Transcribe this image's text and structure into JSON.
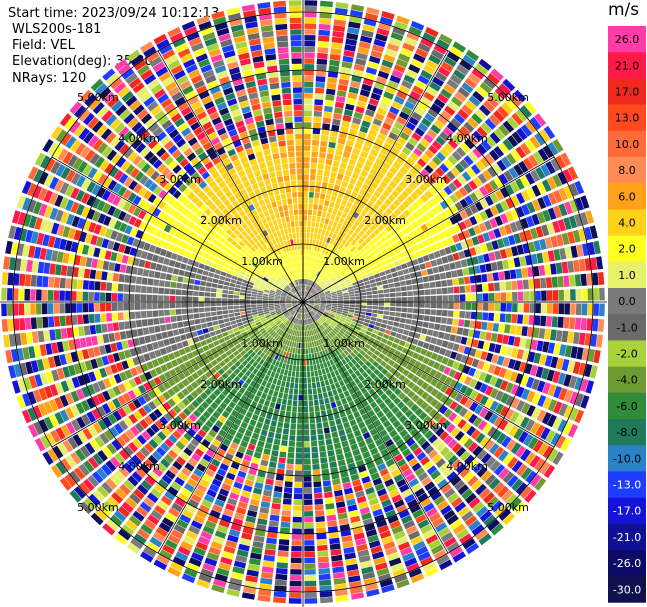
{
  "header": {
    "start_time": "Start time: 2023/09/24 10:12:13",
    "instrument": "WLS200s-181",
    "field": "Field: VEL",
    "elevation": "Elevation(deg): 35.30",
    "nrays": "NRays: 120"
  },
  "colorbar": {
    "unit": "m/s",
    "levels": [
      {
        "label": "26.0",
        "color": "#ff3ca8"
      },
      {
        "label": "21.0",
        "color": "#ff1a4a"
      },
      {
        "label": "17.0",
        "color": "#f0281e"
      },
      {
        "label": "13.0",
        "color": "#ff4a1e"
      },
      {
        "label": "10.0",
        "color": "#ff6a3a"
      },
      {
        "label": "8.0",
        "color": "#ff8c55"
      },
      {
        "label": "6.0",
        "color": "#ffa21a"
      },
      {
        "label": "4.0",
        "color": "#ffd21a"
      },
      {
        "label": "2.0",
        "color": "#ffff22"
      },
      {
        "label": "1.0",
        "color": "#e6f06a"
      },
      {
        "label": "0.0",
        "color": "#7a7a7a"
      },
      {
        "label": "-1.0",
        "color": "#6a6a6a"
      },
      {
        "label": "-2.0",
        "color": "#a8d23a"
      },
      {
        "label": "-4.0",
        "color": "#6e9a32"
      },
      {
        "label": "-6.0",
        "color": "#2e8c3a"
      },
      {
        "label": "-8.0",
        "color": "#1e7a5a"
      },
      {
        "label": "-10.0",
        "color": "#2a82c8"
      },
      {
        "label": "-13.0",
        "color": "#1e3cff"
      },
      {
        "label": "-17.0",
        "color": "#1414d8"
      },
      {
        "label": "-21.0",
        "color": "#101096"
      },
      {
        "label": "-26.0",
        "color": "#0c0c66"
      },
      {
        "label": "-30.0",
        "color": "#101050"
      }
    ]
  },
  "chart_data": {
    "type": "heatmap",
    "projection": "polar (PPI)",
    "field": "VEL",
    "nrays": 120,
    "range_rings_km": [
      "1.00km",
      "2.00km",
      "3.00km",
      "4.00km",
      "5.00km"
    ],
    "spoke_step_deg": 30,
    "velocity_pattern": {
      "near_range_km": [
        0,
        2.9
      ],
      "far_field": "noise",
      "receding_sector": "north",
      "approaching_sector": "south",
      "north_speed_ms": 6,
      "south_speed_ms": -6
    },
    "colors": {
      "gridlines": "#000000",
      "background": "#ffffff"
    }
  }
}
